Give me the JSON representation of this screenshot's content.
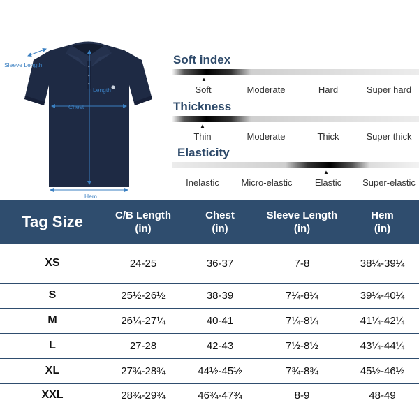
{
  "measurements": {
    "sleeve_length": "Sleeve Length",
    "length": "Length",
    "chest": "Chest",
    "hem": "Hem"
  },
  "properties": [
    {
      "title": "Soft index",
      "labels": [
        "Soft",
        "Moderate",
        "Hard",
        "Super hard"
      ],
      "selected_index": 0,
      "selected_label": "Soft"
    },
    {
      "title": "Thickness",
      "labels": [
        "Thin",
        "Moderate",
        "Thick",
        "Super thick"
      ],
      "selected_index": 0,
      "selected_label": "Thin"
    },
    {
      "title": "Elasticity",
      "labels": [
        "Inelastic",
        "Micro-elastic",
        "Elastic",
        "Super-elastic"
      ],
      "selected_index": 2,
      "selected_label": "Elastic"
    }
  ],
  "colors": {
    "header_bg": "#2f4d6e",
    "title_color": "#2e4a6a",
    "annotation": "#3a7fc1",
    "shirt": "#1e2a44"
  },
  "table": {
    "headers": [
      {
        "line1": "Tag Size",
        "line2": ""
      },
      {
        "line1": "C/B Length",
        "line2": "(in)"
      },
      {
        "line1": "Chest",
        "line2": "(in)"
      },
      {
        "line1": "Sleeve Length",
        "line2": "(in)"
      },
      {
        "line1": "Hem",
        "line2": "(in)"
      }
    ],
    "rows": [
      [
        "XS",
        "24-25",
        "36-37",
        "7-8",
        "38¼-39¼"
      ],
      [
        "S",
        "25½-26½",
        "38-39",
        "7¼-8¼",
        "39¼-40¼"
      ],
      [
        "M",
        "26¼-27¼",
        "40-41",
        "7¼-8¼",
        "41¼-42¼"
      ],
      [
        "L",
        "27-28",
        "42-43",
        "7½-8½",
        "43¼-44¼"
      ],
      [
        "XL",
        "27¾-28¾",
        "44½-45½",
        "7¾-8¾",
        "45½-46½"
      ],
      [
        "XXL",
        "28¾-29¾",
        "46¾-47¾",
        "8-9",
        "48-49"
      ]
    ]
  }
}
